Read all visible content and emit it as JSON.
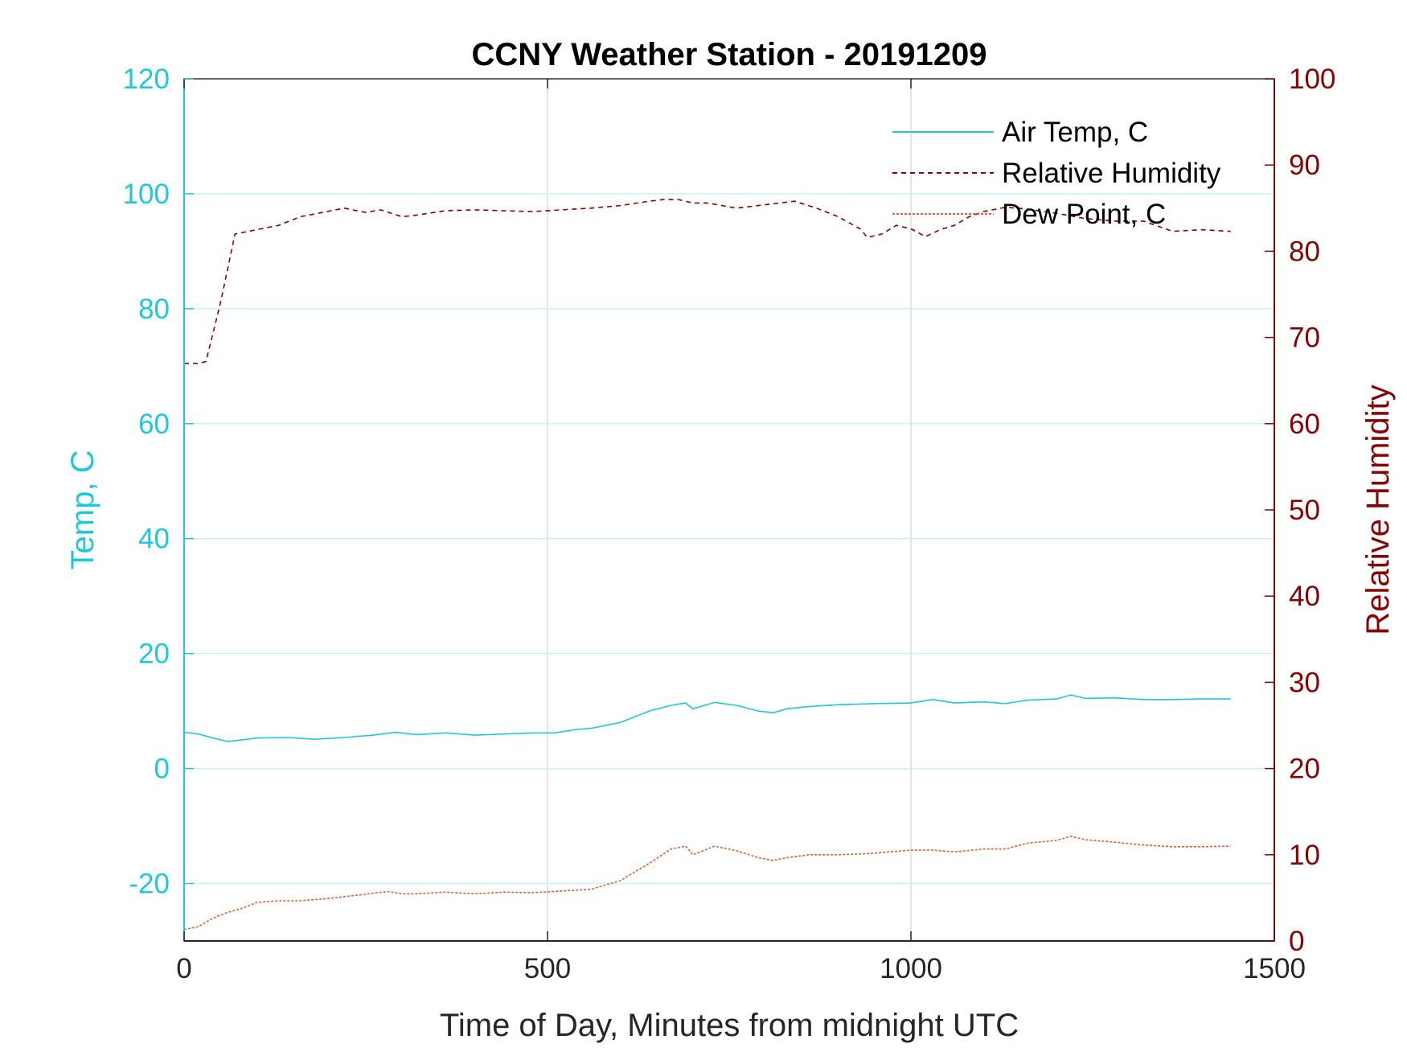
{
  "chart_data": {
    "type": "line",
    "title": "CCNY Weather Station - 20191209",
    "xlabel": "Time of Day, Minutes from midnight UTC",
    "ylabel_left": "Temp, C",
    "ylabel_right": "Relative Humidity",
    "xlim": [
      0,
      1500
    ],
    "ylim_left": [
      -30,
      120
    ],
    "ylim_right": [
      0,
      100
    ],
    "x_ticks": [
      0,
      500,
      1000,
      1500
    ],
    "y_left_ticks": [
      -20,
      0,
      20,
      40,
      60,
      80,
      100,
      120
    ],
    "y_right_ticks": [
      0,
      10,
      20,
      30,
      40,
      50,
      60,
      70,
      80,
      90,
      100
    ],
    "grid": true,
    "legend_position": "top-right",
    "colors": {
      "left_axis": "#1ec8dc",
      "right_axis": "#8b0000",
      "air_temp": "#1ec8dc",
      "rel_humidity": "#8b0000",
      "dew_point": "#e06030",
      "grid_vertical": "#d9dde3",
      "grid_horizontal": "#c8f2f7"
    },
    "series": [
      {
        "name": "Air Temp, C",
        "axis": "left",
        "style": "solid",
        "x": [
          0,
          20,
          40,
          60,
          80,
          100,
          140,
          180,
          220,
          260,
          290,
          320,
          360,
          400,
          440,
          480,
          510,
          540,
          560,
          600,
          640,
          670,
          690,
          700,
          730,
          760,
          790,
          810,
          830,
          860,
          900,
          950,
          1000,
          1030,
          1060,
          1100,
          1130,
          1160,
          1200,
          1220,
          1240,
          1280,
          1320,
          1360,
          1400,
          1440
        ],
        "values": [
          6.3,
          6.0,
          5.3,
          4.7,
          5.0,
          5.3,
          5.4,
          5.1,
          5.4,
          5.8,
          6.3,
          5.9,
          6.2,
          5.8,
          6.0,
          6.2,
          6.2,
          6.8,
          7.0,
          8.0,
          10.0,
          11.0,
          11.4,
          10.4,
          11.5,
          11.0,
          10.0,
          9.7,
          10.4,
          10.8,
          11.1,
          11.3,
          11.4,
          12.0,
          11.4,
          11.6,
          11.3,
          11.9,
          12.1,
          12.8,
          12.2,
          12.3,
          12.0,
          12.0,
          12.1,
          12.1
        ]
      },
      {
        "name": "Relative Humidity",
        "axis": "right",
        "style": "dashed",
        "x": [
          0,
          10,
          20,
          30,
          50,
          70,
          100,
          130,
          160,
          190,
          220,
          250,
          270,
          300,
          320,
          360,
          400,
          440,
          480,
          520,
          560,
          600,
          640,
          660,
          680,
          700,
          720,
          760,
          800,
          840,
          870,
          900,
          930,
          940,
          960,
          980,
          1000,
          1020,
          1040,
          1060,
          1080,
          1100,
          1130,
          1160,
          1200,
          1240,
          1280,
          1320,
          1360,
          1400,
          1440
        ],
        "values": [
          67.0,
          67.0,
          67.0,
          67.2,
          74.0,
          82.0,
          82.5,
          83.0,
          84.0,
          84.5,
          85.0,
          84.5,
          84.8,
          84.0,
          84.2,
          84.7,
          84.8,
          84.7,
          84.6,
          84.8,
          85.0,
          85.3,
          85.8,
          86.0,
          86.0,
          85.6,
          85.6,
          85.0,
          85.4,
          85.8,
          85.0,
          84.0,
          82.6,
          81.6,
          82.0,
          83.0,
          82.6,
          81.7,
          82.5,
          83.0,
          84.0,
          84.6,
          85.1,
          84.9,
          84.4,
          83.8,
          83.5,
          83.5,
          82.3,
          82.5,
          82.3
        ]
      },
      {
        "name": "Dew Point, C",
        "axis": "left",
        "style": "dotted",
        "x": [
          0,
          20,
          40,
          60,
          80,
          100,
          130,
          160,
          200,
          240,
          280,
          300,
          320,
          360,
          400,
          440,
          480,
          520,
          560,
          600,
          640,
          670,
          690,
          700,
          730,
          760,
          790,
          810,
          830,
          860,
          900,
          940,
          1000,
          1030,
          1060,
          1100,
          1130,
          1160,
          1200,
          1220,
          1240,
          1280,
          1320,
          1360,
          1400,
          1440
        ],
        "values": [
          -28.0,
          -27.5,
          -26.0,
          -25.0,
          -24.3,
          -23.3,
          -23.0,
          -23.0,
          -22.6,
          -22.0,
          -21.4,
          -21.8,
          -21.8,
          -21.5,
          -21.8,
          -21.5,
          -21.6,
          -21.3,
          -21.0,
          -19.5,
          -16.5,
          -14.0,
          -13.5,
          -15.0,
          -13.5,
          -14.3,
          -15.5,
          -16.0,
          -15.5,
          -15.0,
          -15.0,
          -14.8,
          -14.2,
          -14.2,
          -14.5,
          -14.0,
          -14.0,
          -13.0,
          -12.5,
          -11.8,
          -12.4,
          -12.8,
          -13.3,
          -13.6,
          -13.6,
          -13.5
        ]
      }
    ]
  }
}
